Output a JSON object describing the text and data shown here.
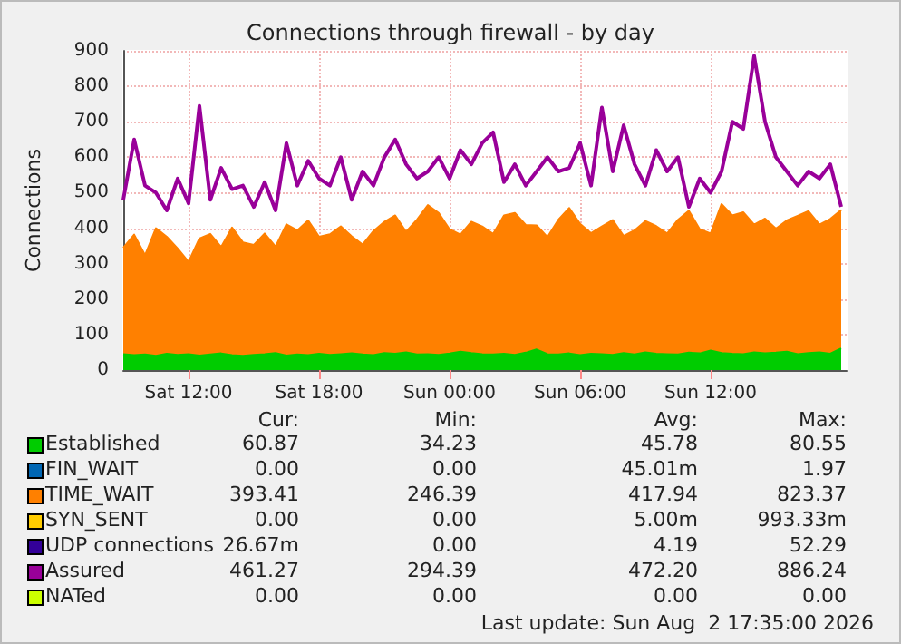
{
  "chart_data": {
    "type": "area",
    "stacked": true,
    "title": "Connections through firewall - by day",
    "ylabel": "Connections",
    "x": [
      "2026-08-01T09:00",
      "2026-08-01T09:30",
      "2026-08-01T10:00",
      "2026-08-01T10:30",
      "2026-08-01T11:00",
      "2026-08-01T11:30",
      "2026-08-01T12:00",
      "2026-08-01T12:30",
      "2026-08-01T13:00",
      "2026-08-01T13:30",
      "2026-08-01T14:00",
      "2026-08-01T14:30",
      "2026-08-01T15:00",
      "2026-08-01T15:30",
      "2026-08-01T16:00",
      "2026-08-01T16:30",
      "2026-08-01T17:00",
      "2026-08-01T17:30",
      "2026-08-01T18:00",
      "2026-08-01T18:30",
      "2026-08-01T19:00",
      "2026-08-01T19:30",
      "2026-08-01T20:00",
      "2026-08-01T20:30",
      "2026-08-01T21:00",
      "2026-08-01T21:30",
      "2026-08-01T22:00",
      "2026-08-01T22:30",
      "2026-08-01T23:00",
      "2026-08-01T23:30",
      "2026-08-02T00:00",
      "2026-08-02T00:30",
      "2026-08-02T01:00",
      "2026-08-02T01:30",
      "2026-08-02T02:00",
      "2026-08-02T02:30",
      "2026-08-02T03:00",
      "2026-08-02T03:30",
      "2026-08-02T04:00",
      "2026-08-02T04:30",
      "2026-08-02T05:00",
      "2026-08-02T05:30",
      "2026-08-02T06:00",
      "2026-08-02T06:30",
      "2026-08-02T07:00",
      "2026-08-02T07:30",
      "2026-08-02T08:00",
      "2026-08-02T08:30",
      "2026-08-02T09:00",
      "2026-08-02T09:30",
      "2026-08-02T10:00",
      "2026-08-02T10:30",
      "2026-08-02T11:00",
      "2026-08-02T11:30",
      "2026-08-02T12:00",
      "2026-08-02T12:30",
      "2026-08-02T13:00",
      "2026-08-02T13:30",
      "2026-08-02T14:00",
      "2026-08-02T14:30",
      "2026-08-02T15:00",
      "2026-08-02T15:30",
      "2026-08-02T16:00",
      "2026-08-02T16:30",
      "2026-08-02T17:00",
      "2026-08-02T17:30",
      "2026-08-02T18:00"
    ],
    "xlim": [
      "2026-08-01T09:00",
      "2026-08-02T18:15"
    ],
    "xticks": [
      {
        "value": "2026-08-01T12:00",
        "label": "Sat 12:00"
      },
      {
        "value": "2026-08-01T18:00",
        "label": "Sat 18:00"
      },
      {
        "value": "2026-08-02T00:00",
        "label": "Sun 00:00"
      },
      {
        "value": "2026-08-02T06:00",
        "label": "Sun 06:00"
      },
      {
        "value": "2026-08-02T12:00",
        "label": "Sun 12:00"
      }
    ],
    "ylim": [
      0,
      900
    ],
    "yticks": [
      0,
      100,
      200,
      300,
      400,
      500,
      600,
      700,
      800,
      900
    ],
    "grid": true,
    "legend": "bottom",
    "series": [
      {
        "name": "Established",
        "color": "#00cc00",
        "values": [
          45,
          42,
          44,
          40,
          46,
          43,
          45,
          41,
          44,
          47,
          42,
          40,
          43,
          45,
          48,
          41,
          44,
          42,
          46,
          43,
          45,
          47,
          44,
          42,
          48,
          46,
          50,
          44,
          45,
          43,
          47,
          52,
          48,
          45,
          44,
          46,
          43,
          49,
          58,
          45,
          44,
          47,
          42,
          46,
          45,
          43,
          48,
          44,
          50,
          46,
          45,
          44,
          49,
          47,
          55,
          48,
          46,
          45,
          50,
          47,
          49,
          52,
          45,
          48,
          50,
          46,
          61
        ]
      },
      {
        "name": "FIN_WAIT",
        "color": "#0066b3",
        "values": [
          null,
          null,
          null,
          null,
          null,
          null,
          null,
          null,
          null,
          null,
          null,
          null,
          null,
          null,
          null,
          null,
          null,
          null,
          null,
          null,
          null,
          null,
          null,
          null,
          null,
          null,
          null,
          null,
          null,
          null,
          null,
          null,
          null,
          null,
          null,
          null,
          null,
          null,
          null,
          null,
          null,
          null,
          null,
          null,
          null,
          null,
          null,
          null,
          null,
          null,
          null,
          null,
          null,
          null,
          null,
          null,
          null,
          null,
          null,
          null,
          null,
          null,
          null,
          null,
          null,
          null,
          null
        ]
      },
      {
        "name": "TIME_WAIT",
        "color": "#ff8000",
        "values": [
          300,
          340,
          280,
          360,
          330,
          300,
          260,
          330,
          340,
          300,
          360,
          320,
          310,
          340,
          300,
          370,
          350,
          380,
          330,
          340,
          360,
          330,
          310,
          350,
          370,
          390,
          340,
          380,
          420,
          400,
          350,
          330,
          370,
          360,
          340,
          390,
          400,
          360,
          350,
          330,
          380,
          410,
          370,
          340,
          360,
          380,
          330,
          350,
          370,
          360,
          340,
          380,
          400,
          350,
          330,
          420,
          390,
          400,
          360,
          380,
          350,
          370,
          390,
          400,
          360,
          380,
          390
        ]
      },
      {
        "name": "SYN_SENT",
        "color": "#ffcc00",
        "values": [
          null,
          null,
          null,
          null,
          null,
          null,
          null,
          null,
          null,
          null,
          null,
          null,
          null,
          null,
          null,
          null,
          null,
          null,
          null,
          null,
          null,
          null,
          null,
          null,
          null,
          null,
          null,
          null,
          null,
          null,
          null,
          null,
          null,
          null,
          null,
          null,
          null,
          null,
          null,
          null,
          null,
          null,
          null,
          null,
          null,
          null,
          null,
          null,
          null,
          null,
          null,
          null,
          null,
          null,
          null,
          null,
          null,
          null,
          null,
          null,
          null,
          null,
          null,
          null,
          null,
          null,
          null
        ]
      },
      {
        "name": "UDP connections",
        "color": "#330099",
        "values": [
          null,
          null,
          null,
          null,
          null,
          null,
          null,
          null,
          null,
          null,
          null,
          null,
          null,
          null,
          null,
          null,
          null,
          null,
          null,
          null,
          null,
          null,
          null,
          null,
          null,
          null,
          null,
          null,
          null,
          null,
          null,
          null,
          null,
          null,
          null,
          null,
          null,
          null,
          null,
          null,
          null,
          null,
          null,
          null,
          null,
          null,
          null,
          null,
          null,
          null,
          null,
          null,
          null,
          null,
          null,
          null,
          null,
          null,
          null,
          null,
          null,
          null,
          null,
          null,
          null,
          null,
          null
        ]
      },
      {
        "name": "Assured",
        "color": "#990099",
        "type": "line",
        "values": [
          480,
          650,
          520,
          500,
          450,
          540,
          470,
          745,
          480,
          570,
          510,
          520,
          460,
          530,
          450,
          640,
          520,
          590,
          540,
          520,
          600,
          480,
          560,
          520,
          600,
          650,
          580,
          540,
          560,
          600,
          540,
          620,
          580,
          640,
          670,
          530,
          580,
          520,
          560,
          600,
          560,
          570,
          640,
          520,
          740,
          560,
          690,
          580,
          520,
          620,
          560,
          600,
          460,
          540,
          500,
          560,
          700,
          680,
          886,
          700,
          600,
          560,
          520,
          560,
          540,
          580,
          460
        ]
      },
      {
        "name": "NATed",
        "color": "#ccff00",
        "type": "line",
        "values": [
          null,
          null,
          null,
          null,
          null,
          null,
          null,
          null,
          null,
          null,
          null,
          null,
          null,
          null,
          null,
          null,
          null,
          null,
          null,
          null,
          null,
          null,
          null,
          null,
          null,
          null,
          null,
          null,
          null,
          null,
          null,
          null,
          null,
          null,
          null,
          null,
          null,
          null,
          null,
          null,
          null,
          null,
          null,
          null,
          null,
          null,
          null,
          null,
          null,
          null,
          null,
          null,
          null,
          null,
          null,
          null,
          null,
          null,
          null,
          null,
          null,
          null,
          null,
          null,
          null,
          null,
          null
        ]
      }
    ],
    "annotations": [
      "Cur:",
      "Min:",
      "Avg:",
      "Max:",
      "60.87",
      "34.23",
      "45.78",
      "80.55",
      "0.00",
      "0.00",
      "45.01m",
      "1.97",
      "393.41",
      "246.39",
      "417.94",
      "823.37",
      "0.00",
      "0.00",
      "5.00m",
      "993.33m",
      "26.67m",
      "0.00",
      "4.19",
      "52.29",
      "461.27",
      "294.39",
      "472.20",
      "886.24",
      "0.00",
      "0.00",
      "0.00",
      "0.00",
      "Last update: Sun Aug  2 17:35:00 2026"
    ]
  }
}
